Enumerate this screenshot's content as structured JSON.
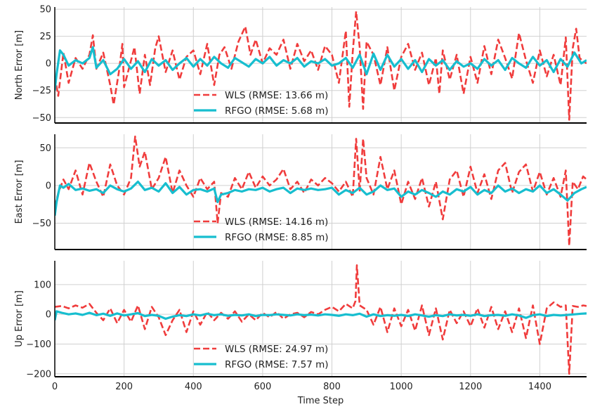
{
  "chart_data": [
    {
      "type": "line",
      "ylabel": "North Error [m]",
      "xlabel": "",
      "xlim": [
        0,
        1535
      ],
      "ylim": [
        -55,
        52
      ],
      "yticks": [
        -50,
        -25,
        0,
        25,
        50
      ],
      "xticks": [
        0,
        200,
        400,
        600,
        800,
        1000,
        1200,
        1400
      ],
      "show_x_tick_labels": false,
      "grid": true,
      "legend_position": "lower-center",
      "series": [
        {
          "name": "WLS (RMSE: 13.66 m)",
          "color": "#f03c3c",
          "style": "dashed",
          "x": [
            0,
            10,
            25,
            40,
            60,
            80,
            100,
            110,
            120,
            140,
            160,
            170,
            185,
            195,
            200,
            230,
            245,
            260,
            275,
            290,
            300,
            320,
            340,
            360,
            380,
            400,
            420,
            440,
            460,
            475,
            490,
            510,
            530,
            550,
            565,
            580,
            600,
            620,
            640,
            660,
            680,
            700,
            720,
            740,
            760,
            780,
            800,
            820,
            840,
            850,
            860,
            870,
            880,
            890,
            900,
            920,
            940,
            960,
            980,
            1000,
            1020,
            1040,
            1060,
            1080,
            1100,
            1110,
            1120,
            1140,
            1160,
            1180,
            1200,
            1220,
            1240,
            1260,
            1280,
            1300,
            1320,
            1340,
            1360,
            1380,
            1400,
            1420,
            1440,
            1460,
            1475,
            1485,
            1495,
            1505,
            1515,
            1525,
            1535
          ],
          "values": [
            -12,
            -30,
            10,
            -18,
            5,
            -5,
            8,
            26,
            -5,
            10,
            -20,
            -38,
            -8,
            18,
            -22,
            15,
            -28,
            8,
            -20,
            14,
            25,
            -8,
            12,
            -15,
            6,
            12,
            -10,
            18,
            -20,
            8,
            15,
            -5,
            20,
            34,
            8,
            22,
            0,
            14,
            8,
            22,
            -5,
            18,
            2,
            12,
            -6,
            16,
            8,
            -18,
            30,
            -40,
            10,
            48,
            15,
            -42,
            20,
            8,
            -20,
            15,
            -25,
            6,
            18,
            -6,
            10,
            -20,
            5,
            -28,
            12,
            -15,
            8,
            -28,
            6,
            -18,
            16,
            -10,
            22,
            5,
            -14,
            28,
            3,
            -18,
            12,
            -12,
            8,
            -20,
            24,
            -52,
            14,
            32,
            5,
            2,
            0
          ]
        },
        {
          "name": "RFGO (RMSE: 5.68 m)",
          "color": "#17becf",
          "style": "solid",
          "x": [
            0,
            5,
            15,
            25,
            40,
            60,
            80,
            100,
            110,
            120,
            140,
            160,
            180,
            200,
            220,
            240,
            260,
            280,
            300,
            320,
            340,
            360,
            380,
            400,
            420,
            440,
            460,
            480,
            500,
            520,
            540,
            560,
            580,
            600,
            620,
            640,
            660,
            680,
            700,
            720,
            740,
            760,
            780,
            800,
            820,
            840,
            860,
            880,
            900,
            920,
            940,
            960,
            980,
            1000,
            1020,
            1040,
            1060,
            1080,
            1100,
            1120,
            1140,
            1160,
            1180,
            1200,
            1220,
            1240,
            1260,
            1280,
            1300,
            1320,
            1340,
            1360,
            1380,
            1400,
            1420,
            1440,
            1460,
            1480,
            1500,
            1520,
            1535
          ],
          "values": [
            -25,
            -10,
            12,
            8,
            -2,
            3,
            0,
            5,
            15,
            -4,
            3,
            -10,
            -5,
            4,
            -5,
            2,
            -8,
            4,
            -2,
            3,
            -6,
            0,
            5,
            -3,
            4,
            -2,
            6,
            0,
            -4,
            5,
            1,
            -3,
            4,
            0,
            6,
            -2,
            3,
            0,
            5,
            -3,
            2,
            0,
            4,
            -2,
            0,
            5,
            -4,
            8,
            -10,
            9,
            -6,
            8,
            -3,
            4,
            -5,
            3,
            -8,
            4,
            -2,
            3,
            -6,
            2,
            -3,
            0,
            -5,
            4,
            -2,
            3,
            -6,
            5,
            0,
            -4,
            6,
            -2,
            3,
            -8,
            4,
            -3,
            10,
            0,
            3
          ]
        }
      ]
    },
    {
      "type": "line",
      "ylabel": "East Error [m]",
      "xlabel": "",
      "xlim": [
        0,
        1535
      ],
      "ylim": [
        -85,
        68
      ],
      "yticks": [
        -50,
        0,
        50
      ],
      "xticks": [
        0,
        200,
        400,
        600,
        800,
        1000,
        1200,
        1400
      ],
      "show_x_tick_labels": false,
      "grid": true,
      "legend_position": "lower-center",
      "series": [
        {
          "name": "WLS (RMSE: 14.16 m)",
          "color": "#f03c3c",
          "style": "dashed",
          "x": [
            0,
            10,
            25,
            40,
            60,
            80,
            100,
            120,
            140,
            160,
            180,
            200,
            220,
            232,
            245,
            260,
            280,
            300,
            320,
            340,
            360,
            380,
            400,
            420,
            440,
            460,
            470,
            480,
            500,
            520,
            540,
            560,
            580,
            600,
            620,
            640,
            660,
            680,
            700,
            720,
            740,
            760,
            780,
            800,
            820,
            840,
            860,
            870,
            880,
            890,
            900,
            920,
            940,
            960,
            980,
            1000,
            1020,
            1040,
            1060,
            1080,
            1100,
            1120,
            1140,
            1160,
            1180,
            1200,
            1220,
            1240,
            1260,
            1280,
            1300,
            1320,
            1340,
            1360,
            1380,
            1400,
            1420,
            1440,
            1460,
            1475,
            1485,
            1495,
            1510,
            1525,
            1535
          ],
          "values": [
            -28,
            -10,
            8,
            -5,
            20,
            -12,
            30,
            5,
            -15,
            28,
            0,
            -12,
            10,
            65,
            25,
            45,
            -5,
            10,
            38,
            -10,
            20,
            0,
            -15,
            10,
            -5,
            5,
            -50,
            -10,
            -15,
            10,
            -5,
            18,
            -3,
            12,
            0,
            8,
            22,
            -5,
            5,
            -10,
            8,
            0,
            10,
            3,
            -8,
            5,
            -15,
            62,
            -8,
            62,
            10,
            -12,
            38,
            -5,
            20,
            -25,
            5,
            -18,
            10,
            -28,
            5,
            -45,
            8,
            20,
            -15,
            25,
            -10,
            15,
            -18,
            20,
            30,
            -10,
            18,
            28,
            -8,
            18,
            -12,
            10,
            -15,
            20,
            -80,
            5,
            -5,
            12,
            8
          ]
        },
        {
          "name": "RFGO (RMSE: 8.85 m)",
          "color": "#17becf",
          "style": "solid",
          "x": [
            0,
            5,
            15,
            25,
            40,
            60,
            80,
            100,
            120,
            140,
            160,
            180,
            200,
            220,
            240,
            260,
            280,
            300,
            320,
            340,
            360,
            380,
            400,
            420,
            440,
            460,
            470,
            480,
            500,
            520,
            540,
            560,
            580,
            600,
            620,
            640,
            660,
            680,
            700,
            720,
            740,
            760,
            780,
            800,
            820,
            840,
            860,
            880,
            900,
            920,
            940,
            960,
            980,
            1000,
            1020,
            1040,
            1060,
            1080,
            1100,
            1120,
            1140,
            1160,
            1180,
            1200,
            1220,
            1240,
            1260,
            1280,
            1300,
            1320,
            1340,
            1360,
            1380,
            1400,
            1420,
            1440,
            1460,
            1480,
            1500,
            1520,
            1535
          ],
          "values": [
            -40,
            -22,
            0,
            -3,
            2,
            -6,
            -4,
            -7,
            -5,
            -10,
            0,
            -5,
            -8,
            -4,
            5,
            -6,
            -3,
            -8,
            3,
            -10,
            -2,
            -12,
            -6,
            -5,
            -8,
            -4,
            -22,
            -12,
            -10,
            -6,
            -8,
            -5,
            -6,
            -3,
            -8,
            -5,
            -3,
            -10,
            -4,
            -6,
            -4,
            -6,
            -5,
            -3,
            -12,
            -6,
            -10,
            -3,
            -12,
            -8,
            0,
            -6,
            -4,
            -15,
            -8,
            -12,
            -6,
            -10,
            -15,
            -8,
            -12,
            -5,
            -8,
            -2,
            -12,
            -6,
            -10,
            0,
            -8,
            -4,
            -10,
            -5,
            -8,
            0,
            -10,
            -5,
            -12,
            -20,
            -10,
            -5,
            -2
          ]
        }
      ]
    },
    {
      "type": "line",
      "ylabel": "Up Error [m]",
      "xlabel": "Time Step",
      "xlim": [
        0,
        1535
      ],
      "ylim": [
        -210,
        180
      ],
      "yticks": [
        -200,
        -100,
        0,
        100
      ],
      "xticks": [
        0,
        200,
        400,
        600,
        800,
        1000,
        1200,
        1400
      ],
      "show_x_tick_labels": true,
      "grid": true,
      "legend_position": "lower-center",
      "series": [
        {
          "name": "WLS (RMSE: 24.97 m)",
          "color": "#f03c3c",
          "style": "dashed",
          "x": [
            0,
            20,
            40,
            60,
            80,
            100,
            120,
            140,
            160,
            180,
            200,
            220,
            240,
            260,
            280,
            300,
            320,
            340,
            360,
            380,
            400,
            420,
            440,
            460,
            480,
            500,
            520,
            540,
            560,
            580,
            600,
            620,
            640,
            660,
            680,
            700,
            720,
            740,
            760,
            780,
            800,
            820,
            840,
            860,
            868,
            872,
            880,
            900,
            920,
            940,
            960,
            980,
            1000,
            1020,
            1040,
            1060,
            1080,
            1100,
            1120,
            1140,
            1160,
            1180,
            1200,
            1220,
            1240,
            1260,
            1280,
            1300,
            1320,
            1340,
            1360,
            1380,
            1400,
            1420,
            1440,
            1460,
            1475,
            1485,
            1495,
            1510,
            1525,
            1535
          ],
          "values": [
            25,
            28,
            20,
            30,
            22,
            35,
            5,
            -20,
            20,
            -30,
            15,
            -25,
            30,
            -50,
            25,
            -10,
            -70,
            -20,
            15,
            -60,
            10,
            -35,
            8,
            -20,
            5,
            -15,
            10,
            -25,
            0,
            -20,
            5,
            -10,
            8,
            -15,
            0,
            5,
            -10,
            8,
            0,
            15,
            25,
            10,
            35,
            20,
            45,
            165,
            30,
            15,
            -35,
            25,
            -60,
            20,
            -40,
            15,
            -55,
            30,
            -70,
            20,
            -85,
            15,
            -30,
            10,
            -40,
            20,
            -45,
            25,
            -50,
            10,
            -60,
            20,
            -80,
            30,
            -100,
            20,
            40,
            25,
            30,
            -200,
            28,
            25,
            30,
            28
          ]
        },
        {
          "name": "RFGO (RMSE: 7.57 m)",
          "color": "#17becf",
          "style": "solid",
          "x": [
            0,
            5,
            20,
            40,
            60,
            80,
            100,
            120,
            140,
            160,
            180,
            200,
            220,
            240,
            260,
            280,
            300,
            320,
            340,
            360,
            380,
            400,
            420,
            440,
            460,
            480,
            500,
            520,
            540,
            560,
            580,
            600,
            620,
            640,
            660,
            680,
            700,
            720,
            740,
            760,
            780,
            800,
            820,
            840,
            860,
            880,
            900,
            920,
            940,
            960,
            980,
            1000,
            1020,
            1040,
            1060,
            1080,
            1100,
            1120,
            1140,
            1160,
            1180,
            1200,
            1220,
            1240,
            1260,
            1280,
            1300,
            1320,
            1340,
            1360,
            1380,
            1400,
            1420,
            1440,
            1460,
            1480,
            1500,
            1520,
            1535
          ],
          "values": [
            -20,
            10,
            5,
            0,
            3,
            -2,
            5,
            -3,
            2,
            -5,
            3,
            -4,
            0,
            4,
            -6,
            -2,
            -5,
            -15,
            -8,
            -3,
            -6,
            0,
            -4,
            2,
            -3,
            0,
            -5,
            -2,
            -4,
            0,
            -6,
            -2,
            -3,
            0,
            -2,
            -4,
            0,
            -3,
            -1,
            -4,
            0,
            -2,
            -5,
            0,
            -3,
            2,
            -8,
            0,
            -6,
            -3,
            -5,
            -2,
            -6,
            0,
            -4,
            -8,
            -3,
            -6,
            0,
            -4,
            -2,
            -5,
            0,
            -6,
            -3,
            -2,
            -5,
            0,
            -4,
            -12,
            -3,
            0,
            -6,
            -2,
            -4,
            -2,
            0,
            2,
            3
          ]
        }
      ]
    }
  ]
}
